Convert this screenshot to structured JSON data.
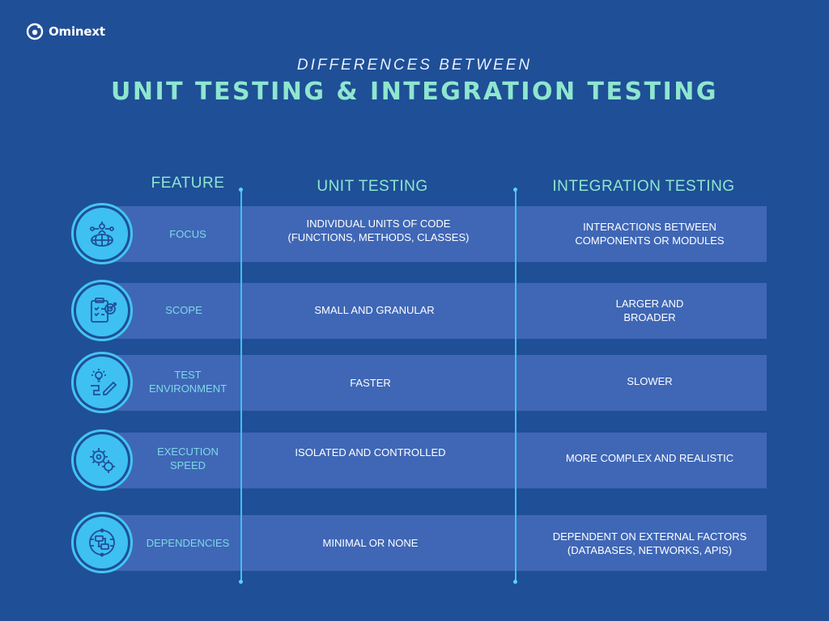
{
  "brand": {
    "name": "Ominext"
  },
  "header": {
    "subtitle": "DIFFERENCES BETWEEN",
    "title": "UNIT TESTING & INTEGRATION TESTING"
  },
  "columns": {
    "feature": "FEATURE",
    "unit": "UNIT TESTING",
    "integration": "INTEGRATION TESTING"
  },
  "rows": [
    {
      "icon": "globe-network-icon",
      "feature": "FOCUS",
      "unit": "INDIVIDUAL UNITS OF CODE\n(FUNCTIONS, METHODS, CLASSES)",
      "integration": "INTERACTIONS BETWEEN\nCOMPONENTS OR MODULES"
    },
    {
      "icon": "clipboard-target-icon",
      "feature": "SCOPE",
      "unit": "SMALL AND GRANULAR",
      "integration": "LARGER AND\nBROADER"
    },
    {
      "icon": "lightbulb-pencil-icon",
      "feature": "TEST\nENVIRONMENT",
      "unit": "FASTER",
      "integration": "SLOWER"
    },
    {
      "icon": "gears-icon",
      "feature": "EXECUTION\nSPEED",
      "unit": "ISOLATED AND CONTROLLED",
      "integration": "MORE COMPLEX AND REALISTIC"
    },
    {
      "icon": "workflow-icon",
      "feature": "DEPENDENCIES",
      "unit": "MINIMAL OR NONE",
      "integration": "DEPENDENT ON EXTERNAL FACTORS\n(DATABASES, NETWORKS, APIS)"
    }
  ],
  "colors": {
    "background": "#1f4f97",
    "band": "#3f67b6",
    "accent": "#8ee6cf",
    "line": "#3ec1f3",
    "icon_fill": "#3ec0f2"
  }
}
